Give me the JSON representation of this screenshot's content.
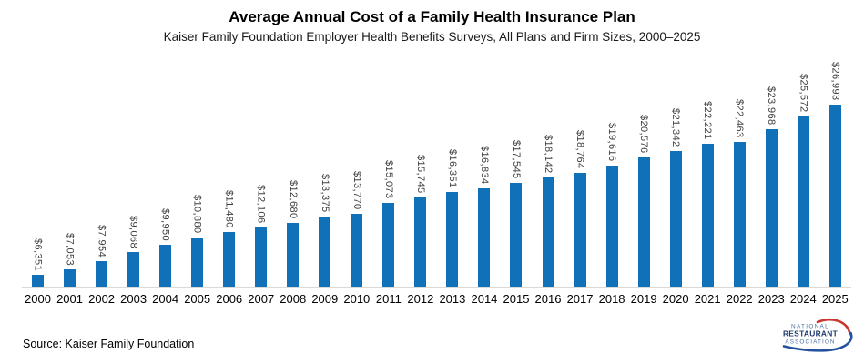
{
  "header": {
    "title": "Average Annual Cost of a Family Health Insurance Plan",
    "subtitle": "Kaiser Family Foundation Employer Health Benefits Surveys, All Plans and Firm Sizes, 2000–2025"
  },
  "chart_data": {
    "type": "bar",
    "title": "Average Annual Cost of a Family Health Insurance Plan",
    "subtitle": "Kaiser Family Foundation Employer Health Benefits Surveys, All Plans and Firm Sizes, 2000–2025",
    "categories": [
      "2000",
      "2001",
      "2002",
      "2003",
      "2004",
      "2005",
      "2006",
      "2007",
      "2008",
      "2009",
      "2010",
      "2011",
      "2012",
      "2013",
      "2014",
      "2015",
      "2016",
      "2017",
      "2018",
      "2019",
      "2020",
      "2021",
      "2022",
      "2023",
      "2024",
      "2025"
    ],
    "values": [
      6351,
      7053,
      7954,
      9068,
      9950,
      10880,
      11480,
      12106,
      12680,
      13375,
      13770,
      15073,
      15745,
      16351,
      16834,
      17545,
      18142,
      18764,
      19616,
      20576,
      21342,
      22221,
      22463,
      23968,
      25572,
      26993
    ],
    "value_labels": [
      "$6,351",
      "$7,053",
      "$7,954",
      "$9,068",
      "$9,950",
      "$10,880",
      "$11,480",
      "$12,106",
      "$12,680",
      "$13,375",
      "$13,770",
      "$15,073",
      "$15,745",
      "$16,351",
      "$16,834",
      "$17,545",
      "$18,142",
      "$18,764",
      "$19,616",
      "$20,576",
      "$21,342",
      "$22,221",
      "$22,463",
      "$23,968",
      "$25,572",
      "$26,993"
    ],
    "xlabel": "",
    "ylabel": "",
    "ylim": [
      4900,
      27000
    ],
    "grid": false,
    "legend": "none",
    "bar_color": "#1071b8",
    "value_label_rotation": "vertical"
  },
  "footer": {
    "source": "Source: Kaiser Family Foundation"
  },
  "logo": {
    "line1": "NATIONAL",
    "line2": "RESTAURANT",
    "line3": "ASSOCIATION"
  },
  "colors": {
    "bar": "#1071b8",
    "axis-line": "#d9d9d9",
    "value-label": "#3f3f3f",
    "logo-light": "#4a6fa5",
    "logo-dark": "#1e3a6e",
    "logo-red": "#c8372d",
    "logo-blue": "#2351a0"
  }
}
